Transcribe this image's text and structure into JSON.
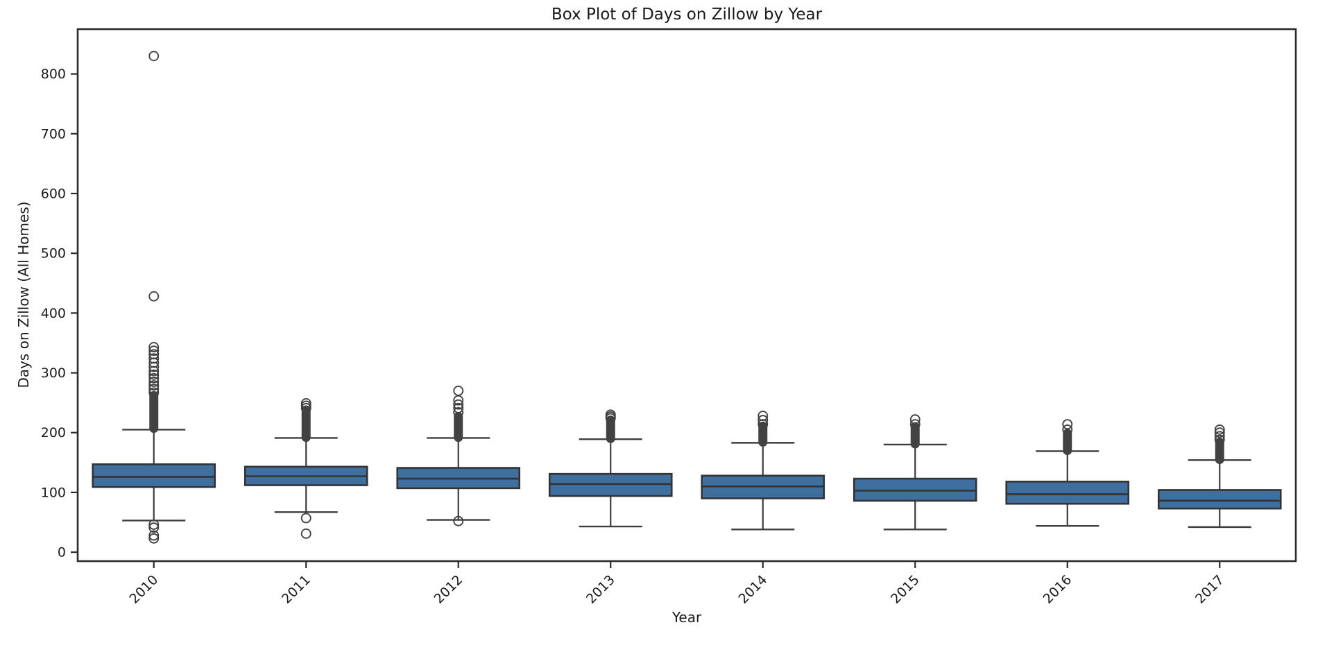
{
  "chart_data": {
    "type": "boxplot",
    "title": "Box Plot of Days on Zillow by Year",
    "xlabel": "Year",
    "ylabel": "Days on Zillow (All Homes)",
    "categories": [
      "2010",
      "2011",
      "2012",
      "2013",
      "2014",
      "2015",
      "2016",
      "2017"
    ],
    "yticks": [
      0,
      100,
      200,
      300,
      400,
      500,
      600,
      700,
      800
    ],
    "ylim": [
      -15,
      875
    ],
    "grid": false,
    "legend": "none",
    "x_tick_rotation_deg": 45,
    "colors": {
      "box_fill": "#3F6F9F",
      "box_edge": "#333333",
      "whisker": "#3d3d3d",
      "flier_edge": "#424242",
      "spine": "#2b2b2b",
      "text": "#1a1a1a",
      "background": "#ffffff"
    },
    "boxes": [
      {
        "category": "2010",
        "whisker_low": 53,
        "q1": 109,
        "median": 126,
        "q3": 147,
        "whisker_high": 205,
        "outliers_low": [
          46,
          41,
          28,
          23
        ],
        "outlier_dense_range": [
          207,
          262
        ],
        "outliers_high": [
          267,
          273,
          279,
          285,
          291,
          297,
          303,
          310,
          317,
          324,
          331,
          337,
          343,
          428,
          830
        ]
      },
      {
        "category": "2011",
        "whisker_low": 67,
        "q1": 112,
        "median": 127,
        "q3": 143,
        "whisker_high": 191,
        "outliers_low": [
          57,
          31
        ],
        "outlier_dense_range": [
          192,
          238
        ],
        "outliers_high": [
          241,
          245,
          249
        ]
      },
      {
        "category": "2012",
        "whisker_low": 54,
        "q1": 107,
        "median": 123,
        "q3": 141,
        "whisker_high": 191,
        "outliers_low": [
          52
        ],
        "outlier_dense_range": [
          192,
          227
        ],
        "outliers_high": [
          234,
          241,
          247,
          254,
          270
        ]
      },
      {
        "category": "2013",
        "whisker_low": 43,
        "q1": 94,
        "median": 114,
        "q3": 131,
        "whisker_high": 189,
        "outliers_low": [],
        "outlier_dense_range": [
          190,
          221
        ],
        "outliers_high": [
          224,
          227,
          230
        ]
      },
      {
        "category": "2014",
        "whisker_low": 38,
        "q1": 90,
        "median": 110,
        "q3": 128,
        "whisker_high": 183,
        "outliers_low": [],
        "outlier_dense_range": [
          184,
          211
        ],
        "outliers_high": [
          214,
          221,
          228
        ]
      },
      {
        "category": "2015",
        "whisker_low": 38,
        "q1": 86,
        "median": 103,
        "q3": 123,
        "whisker_high": 180,
        "outliers_low": [],
        "outlier_dense_range": [
          181,
          210
        ],
        "outliers_high": [
          214,
          222
        ]
      },
      {
        "category": "2016",
        "whisker_low": 44,
        "q1": 81,
        "median": 97,
        "q3": 118,
        "whisker_high": 169,
        "outliers_low": [],
        "outlier_dense_range": [
          170,
          199
        ],
        "outliers_high": [
          205,
          214
        ]
      },
      {
        "category": "2017",
        "whisker_low": 42,
        "q1": 73,
        "median": 86,
        "q3": 104,
        "whisker_high": 154,
        "outliers_low": [],
        "outlier_dense_range": [
          155,
          184
        ],
        "outliers_high": [
          188,
          194,
          200,
          205
        ]
      }
    ]
  }
}
